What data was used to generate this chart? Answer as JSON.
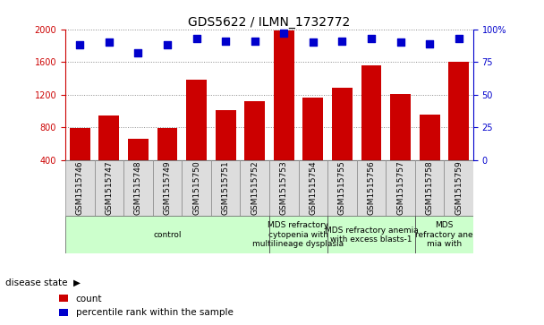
{
  "title": "GDS5622 / ILMN_1732772",
  "samples": [
    "GSM1515746",
    "GSM1515747",
    "GSM1515748",
    "GSM1515749",
    "GSM1515750",
    "GSM1515751",
    "GSM1515752",
    "GSM1515753",
    "GSM1515754",
    "GSM1515755",
    "GSM1515756",
    "GSM1515757",
    "GSM1515758",
    "GSM1515759"
  ],
  "counts": [
    790,
    940,
    660,
    790,
    1380,
    1010,
    1120,
    1980,
    1160,
    1280,
    1560,
    1210,
    960,
    1600
  ],
  "percentile_ranks": [
    88,
    90,
    82,
    88,
    93,
    91,
    91,
    97,
    90,
    91,
    93,
    90,
    89,
    93
  ],
  "ylim_left": [
    400,
    2000
  ],
  "ylim_right": [
    0,
    100
  ],
  "yticks_left": [
    400,
    800,
    1200,
    1600,
    2000
  ],
  "yticks_right": [
    0,
    25,
    50,
    75,
    100
  ],
  "bar_color": "#cc0000",
  "dot_color": "#0000cc",
  "grid_color": "#888888",
  "left_axis_color": "#cc0000",
  "right_axis_color": "#0000cc",
  "title_fontsize": 10,
  "tick_fontsize": 7,
  "label_fontsize": 7.5,
  "disease_label_fontsize": 6.5,
  "sample_fontsize": 6.5,
  "dot_size": 30,
  "disease_groups": [
    {
      "label": "control",
      "start": 0,
      "end": 7,
      "color": "#ccffcc"
    },
    {
      "label": "MDS refractory\ncytopenia with\nmultilineage dysplasia",
      "start": 7,
      "end": 9,
      "color": "#ccffcc"
    },
    {
      "label": "MDS refractory anemia\nwith excess blasts-1",
      "start": 9,
      "end": 12,
      "color": "#ccffcc"
    },
    {
      "label": "MDS\nrefractory ane\nmia with",
      "start": 12,
      "end": 14,
      "color": "#ccffcc"
    }
  ]
}
